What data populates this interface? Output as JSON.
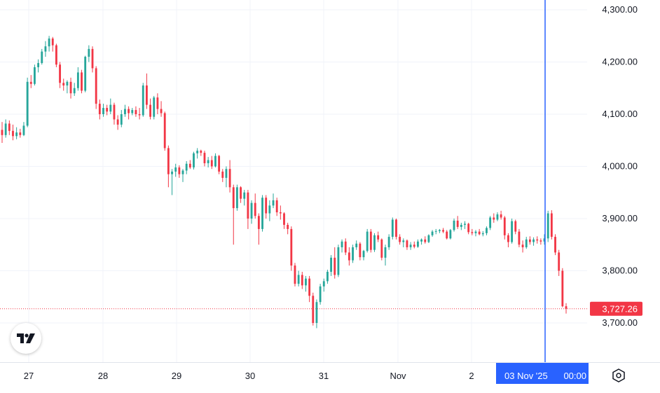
{
  "chart_data": {
    "type": "candlestick",
    "x_ticks": [
      "27",
      "28",
      "29",
      "30",
      "31",
      "Nov",
      "2"
    ],
    "y_ticks": [
      "3,700.00",
      "3,800.00",
      "3,900.00",
      "4,000.00",
      "4,100.00",
      "4,200.00",
      "4,300.00"
    ],
    "y_tick_values": [
      3700,
      3800,
      3900,
      4000,
      4100,
      4200,
      4300
    ],
    "ylim": [
      3620,
      4320
    ],
    "last_price": 3727.26,
    "last_price_label": "3,727.26",
    "crosshair_date": "03 Nov '25",
    "crosshair_time": "00:00",
    "grid": true,
    "colors": {
      "up": "#26a69a",
      "down": "#f23645",
      "crosshair": "#2962ff",
      "grid": "#f0f3fa",
      "axis_text": "#131722"
    },
    "candles_note_free": true,
    "ohlc": [
      [
        4070,
        4085,
        4045,
        4060
      ],
      [
        4060,
        4090,
        4055,
        4082
      ],
      [
        4082,
        4088,
        4060,
        4068
      ],
      [
        4068,
        4080,
        4050,
        4058
      ],
      [
        4058,
        4075,
        4052,
        4065
      ],
      [
        4065,
        4072,
        4055,
        4060
      ],
      [
        4060,
        4085,
        4058,
        4078
      ],
      [
        4078,
        4170,
        4075,
        4162
      ],
      [
        4162,
        4175,
        4150,
        4158
      ],
      [
        4158,
        4195,
        4155,
        4190
      ],
      [
        4190,
        4205,
        4180,
        4198
      ],
      [
        4198,
        4225,
        4195,
        4220
      ],
      [
        4220,
        4240,
        4210,
        4230
      ],
      [
        4230,
        4250,
        4220,
        4245
      ],
      [
        4245,
        4248,
        4220,
        4232
      ],
      [
        4232,
        4235,
        4190,
        4195
      ],
      [
        4195,
        4200,
        4150,
        4160
      ],
      [
        4160,
        4168,
        4145,
        4155
      ],
      [
        4155,
        4165,
        4140,
        4162
      ],
      [
        4162,
        4170,
        4130,
        4140
      ],
      [
        4140,
        4160,
        4135,
        4150
      ],
      [
        4150,
        4190,
        4145,
        4180
      ],
      [
        4180,
        4185,
        4140,
        4145
      ],
      [
        4145,
        4212,
        4142,
        4210
      ],
      [
        4210,
        4232,
        4200,
        4225
      ],
      [
        4225,
        4230,
        4180,
        4188
      ],
      [
        4188,
        4192,
        4110,
        4120
      ],
      [
        4120,
        4128,
        4090,
        4100
      ],
      [
        4100,
        4120,
        4095,
        4112
      ],
      [
        4112,
        4118,
        4098,
        4105
      ],
      [
        4105,
        4130,
        4100,
        4118
      ],
      [
        4118,
        4122,
        4080,
        4090
      ],
      [
        4090,
        4098,
        4070,
        4080
      ],
      [
        4080,
        4108,
        4075,
        4100
      ],
      [
        4100,
        4118,
        4095,
        4110
      ],
      [
        4110,
        4115,
        4090,
        4102
      ],
      [
        4102,
        4112,
        4098,
        4108
      ],
      [
        4108,
        4115,
        4095,
        4100
      ],
      [
        4100,
        4112,
        4090,
        4098
      ],
      [
        4098,
        4160,
        4095,
        4155
      ],
      [
        4155,
        4178,
        4110,
        4118
      ],
      [
        4118,
        4130,
        4090,
        4095
      ],
      [
        4095,
        4135,
        4090,
        4132
      ],
      [
        4132,
        4140,
        4100,
        4110
      ],
      [
        4110,
        4125,
        4095,
        4102
      ],
      [
        4102,
        4105,
        4030,
        4035
      ],
      [
        4035,
        4040,
        3960,
        3985
      ],
      [
        3985,
        3995,
        3945,
        3990
      ],
      [
        3990,
        4005,
        3980,
        3998
      ],
      [
        3998,
        4002,
        3978,
        3985
      ],
      [
        3985,
        3995,
        3970,
        3992
      ],
      [
        3992,
        4010,
        3985,
        4005
      ],
      [
        4005,
        4012,
        3995,
        3998
      ],
      [
        3998,
        4028,
        3994,
        4025
      ],
      [
        4025,
        4035,
        4015,
        4030
      ],
      [
        4030,
        4032,
        4020,
        4026
      ],
      [
        4026,
        4030,
        4000,
        4006
      ],
      [
        4006,
        4018,
        3998,
        4012
      ],
      [
        4012,
        4020,
        3995,
        4000
      ],
      [
        4000,
        4025,
        3998,
        4020
      ],
      [
        4020,
        4022,
        3985,
        3990
      ],
      [
        3990,
        3995,
        3970,
        3978
      ],
      [
        3978,
        4000,
        3960,
        3995
      ],
      [
        3995,
        4012,
        3950,
        3960
      ],
      [
        3960,
        3965,
        3850,
        3920
      ],
      [
        3920,
        3965,
        3915,
        3960
      ],
      [
        3960,
        3962,
        3930,
        3938
      ],
      [
        3938,
        3955,
        3925,
        3950
      ],
      [
        3950,
        3955,
        3880,
        3900
      ],
      [
        3900,
        3935,
        3890,
        3930
      ],
      [
        3930,
        3948,
        3900,
        3905
      ],
      [
        3905,
        3910,
        3850,
        3880
      ],
      [
        3880,
        3945,
        3875,
        3940
      ],
      [
        3940,
        3945,
        3900,
        3910
      ],
      [
        3910,
        3935,
        3895,
        3925
      ],
      [
        3925,
        3948,
        3920,
        3935
      ],
      [
        3935,
        3940,
        3905,
        3912
      ],
      [
        3912,
        3925,
        3898,
        3910
      ],
      [
        3910,
        3912,
        3880,
        3888
      ],
      [
        3888,
        3892,
        3870,
        3880
      ],
      [
        3880,
        3885,
        3800,
        3810
      ],
      [
        3810,
        3815,
        3770,
        3775
      ],
      [
        3775,
        3800,
        3770,
        3792
      ],
      [
        3792,
        3798,
        3765,
        3772
      ],
      [
        3772,
        3790,
        3760,
        3785
      ],
      [
        3785,
        3790,
        3740,
        3752
      ],
      [
        3752,
        3758,
        3695,
        3700
      ],
      [
        3700,
        3745,
        3690,
        3740
      ],
      [
        3740,
        3775,
        3735,
        3770
      ],
      [
        3770,
        3785,
        3760,
        3780
      ],
      [
        3780,
        3802,
        3775,
        3798
      ],
      [
        3798,
        3830,
        3790,
        3825
      ],
      [
        3825,
        3845,
        3785,
        3792
      ],
      [
        3792,
        3850,
        3788,
        3845
      ],
      [
        3845,
        3860,
        3835,
        3856
      ],
      [
        3856,
        3862,
        3830,
        3835
      ],
      [
        3835,
        3845,
        3810,
        3820
      ],
      [
        3820,
        3850,
        3815,
        3845
      ],
      [
        3845,
        3858,
        3840,
        3852
      ],
      [
        3852,
        3855,
        3820,
        3826
      ],
      [
        3826,
        3840,
        3820,
        3838
      ],
      [
        3838,
        3880,
        3835,
        3875
      ],
      [
        3875,
        3880,
        3835,
        3840
      ],
      [
        3840,
        3872,
        3836,
        3868
      ],
      [
        3868,
        3875,
        3855,
        3860
      ],
      [
        3860,
        3862,
        3820,
        3825
      ],
      [
        3825,
        3850,
        3810,
        3845
      ],
      [
        3845,
        3870,
        3840,
        3865
      ],
      [
        3865,
        3902,
        3860,
        3898
      ],
      [
        3898,
        3900,
        3860,
        3865
      ],
      [
        3865,
        3870,
        3850,
        3855
      ],
      [
        3855,
        3862,
        3845,
        3858
      ],
      [
        3858,
        3860,
        3840,
        3845
      ],
      [
        3845,
        3855,
        3840,
        3850
      ],
      [
        3850,
        3856,
        3843,
        3846
      ],
      [
        3846,
        3860,
        3844,
        3856
      ],
      [
        3856,
        3862,
        3850,
        3860
      ],
      [
        3860,
        3866,
        3852,
        3855
      ],
      [
        3855,
        3870,
        3853,
        3868
      ],
      [
        3868,
        3878,
        3865,
        3875
      ],
      [
        3875,
        3880,
        3870,
        3876
      ],
      [
        3876,
        3880,
        3872,
        3878
      ],
      [
        3878,
        3882,
        3872,
        3875
      ],
      [
        3875,
        3878,
        3860,
        3862
      ],
      [
        3862,
        3880,
        3860,
        3878
      ],
      [
        3878,
        3900,
        3875,
        3896
      ],
      [
        3896,
        3905,
        3880,
        3884
      ],
      [
        3884,
        3892,
        3878,
        3888
      ],
      [
        3888,
        3895,
        3880,
        3890
      ],
      [
        3890,
        3892,
        3870,
        3874
      ],
      [
        3874,
        3880,
        3868,
        3872
      ],
      [
        3872,
        3878,
        3866,
        3875
      ],
      [
        3875,
        3880,
        3868,
        3870
      ],
      [
        3870,
        3876,
        3866,
        3872
      ],
      [
        3872,
        3885,
        3868,
        3882
      ],
      [
        3882,
        3905,
        3878,
        3902
      ],
      [
        3902,
        3910,
        3892,
        3898
      ],
      [
        3898,
        3912,
        3895,
        3908
      ],
      [
        3908,
        3915,
        3898,
        3902
      ],
      [
        3902,
        3905,
        3860,
        3868
      ],
      [
        3868,
        3872,
        3845,
        3855
      ],
      [
        3855,
        3900,
        3852,
        3895
      ],
      [
        3895,
        3898,
        3870,
        3875
      ],
      [
        3875,
        3880,
        3845,
        3850
      ],
      [
        3850,
        3858,
        3835,
        3845
      ],
      [
        3845,
        3865,
        3842,
        3860
      ],
      [
        3860,
        3866,
        3850,
        3855
      ],
      [
        3855,
        3864,
        3848,
        3860
      ],
      [
        3860,
        3866,
        3852,
        3858
      ],
      [
        3858,
        3862,
        3850,
        3856
      ],
      [
        3856,
        3870,
        3850,
        3862
      ],
      [
        3862,
        3915,
        3855,
        3910
      ],
      [
        3910,
        3916,
        3860,
        3865
      ],
      [
        3865,
        3870,
        3830,
        3835
      ],
      [
        3835,
        3840,
        3790,
        3800
      ],
      [
        3800,
        3805,
        3730,
        3732
      ],
      [
        3732,
        3738,
        3718,
        3727
      ]
    ]
  },
  "ui": {
    "logo_text": "TV",
    "icons": {
      "logo": "tradingview-logo-icon",
      "settings": "settings-icon"
    }
  }
}
